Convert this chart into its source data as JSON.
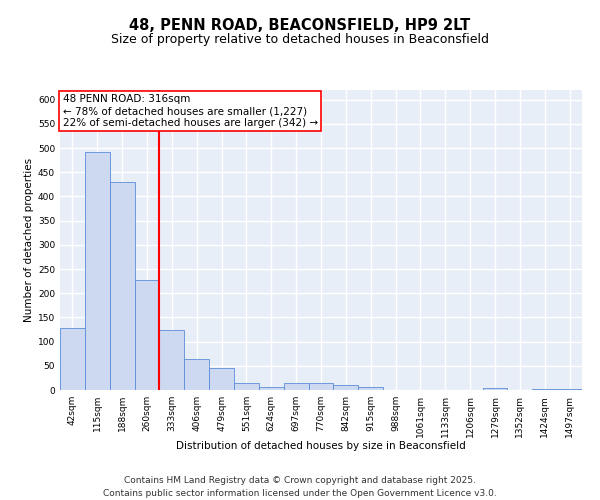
{
  "title_line1": "48, PENN ROAD, BEACONSFIELD, HP9 2LT",
  "title_line2": "Size of property relative to detached houses in Beaconsfield",
  "xlabel": "Distribution of detached houses by size in Beaconsfield",
  "ylabel": "Number of detached properties",
  "bar_labels": [
    "42sqm",
    "115sqm",
    "188sqm",
    "260sqm",
    "333sqm",
    "406sqm",
    "479sqm",
    "551sqm",
    "624sqm",
    "697sqm",
    "770sqm",
    "842sqm",
    "915sqm",
    "988sqm",
    "1061sqm",
    "1133sqm",
    "1206sqm",
    "1279sqm",
    "1352sqm",
    "1424sqm",
    "1497sqm"
  ],
  "bar_values": [
    128,
    492,
    430,
    228,
    125,
    65,
    46,
    14,
    6,
    14,
    14,
    10,
    7,
    0,
    1,
    0,
    0,
    5,
    0,
    2,
    3
  ],
  "bar_color": "#ccd9f0",
  "bar_edge_color": "#5b8dd9",
  "bar_edge_width": 0.6,
  "vline_color": "red",
  "vline_pos": 3.5,
  "vline_label_title": "48 PENN ROAD: 316sqm",
  "vline_label_smaller": "← 78% of detached houses are smaller (1,227)",
  "vline_label_larger": "22% of semi-detached houses are larger (342) →",
  "annotation_box_color": "white",
  "annotation_box_edge_color": "red",
  "ylim": [
    0,
    620
  ],
  "yticks": [
    0,
    50,
    100,
    150,
    200,
    250,
    300,
    350,
    400,
    450,
    500,
    550,
    600
  ],
  "background_color": "#e8eef8",
  "grid_color": "white",
  "footer_line1": "Contains HM Land Registry data © Crown copyright and database right 2025.",
  "footer_line2": "Contains public sector information licensed under the Open Government Licence v3.0.",
  "title_fontsize": 10.5,
  "subtitle_fontsize": 9,
  "axis_label_fontsize": 7.5,
  "tick_fontsize": 6.5,
  "footer_fontsize": 6.5,
  "annot_fontsize": 7.5
}
